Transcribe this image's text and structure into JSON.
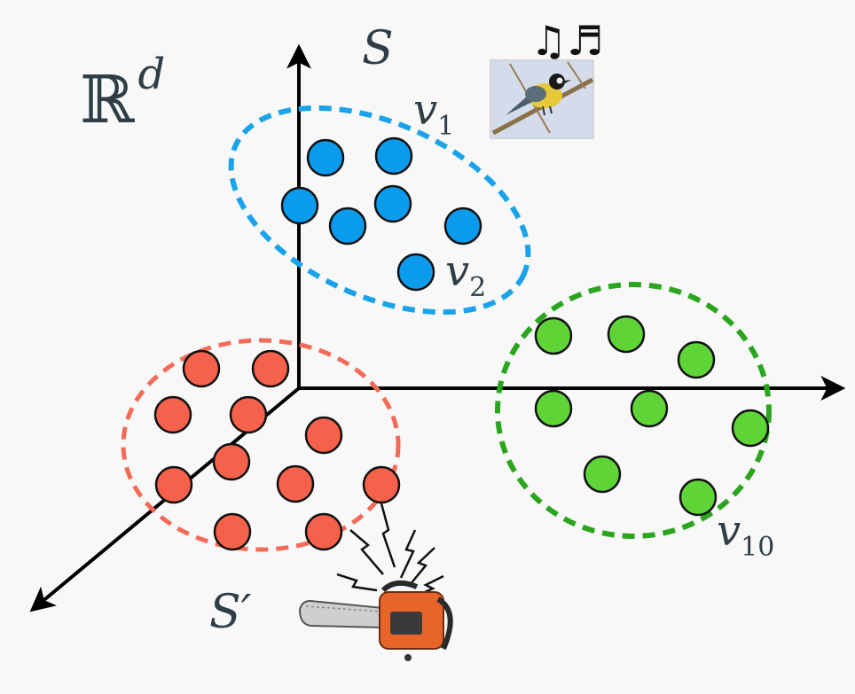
{
  "space_label": "ℝ",
  "space_exponent": "d",
  "set_s_label": "S",
  "set_s_prime_label": "S′",
  "v1": {
    "base": "v",
    "sub": "1"
  },
  "v2": {
    "base": "v",
    "sub": "2"
  },
  "v10": {
    "base": "v",
    "sub": "10"
  },
  "music_notes": "♫♬",
  "colors": {
    "blue": "#0b9bec",
    "red": "#f5614a",
    "green": "#5ed437",
    "blue_ring": "#1aa3ea",
    "red_ring": "#f46a59",
    "green_ring": "#2aa51d",
    "axis": "#000000"
  },
  "icons": {
    "bird": "bird-photo-icon",
    "chainsaw": "chainsaw-icon"
  }
}
